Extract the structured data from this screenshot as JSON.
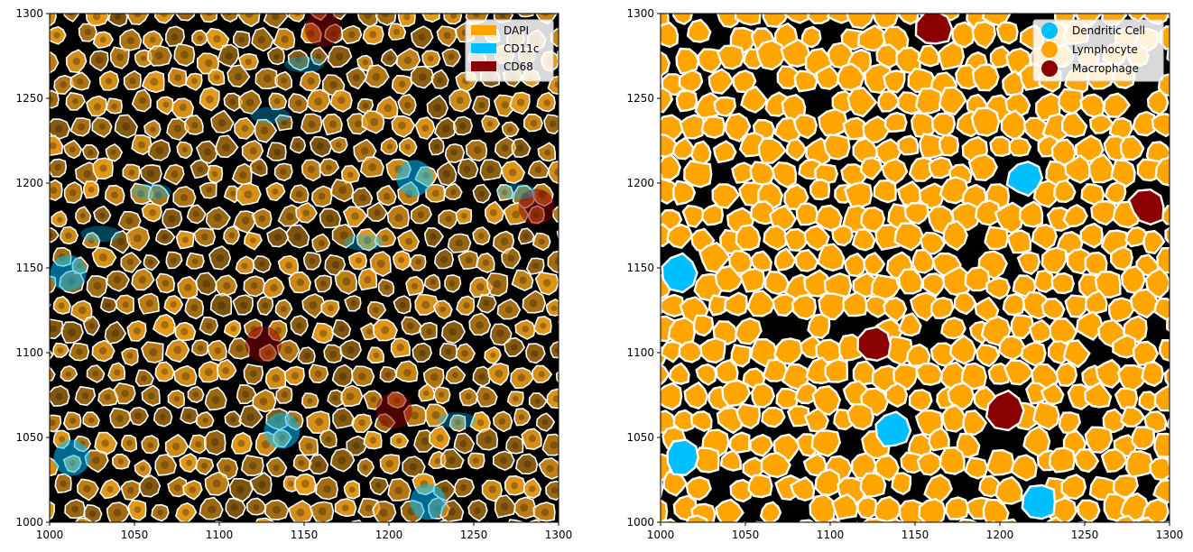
{
  "left_panel": {
    "xlim": [
      1000,
      1300
    ],
    "ylim": [
      1000,
      1300
    ],
    "x_ticks": [
      "1000",
      "1050",
      "1100",
      "1150",
      "1200",
      "1250",
      "1300"
    ],
    "y_ticks": [
      "1000",
      "1050",
      "1100",
      "1150",
      "1200",
      "1250",
      "1300"
    ],
    "legend": [
      {
        "label": "DAPI",
        "color": "#FFA500"
      },
      {
        "label": "CD11c",
        "color": "#00BFFF"
      },
      {
        "label": "CD68",
        "color": "#8B0000"
      }
    ],
    "background_color": "#000000",
    "cell_color": "#E69A1A",
    "boundary_color": "#FFFFFF"
  },
  "right_panel": {
    "xlim": [
      1000,
      1300
    ],
    "ylim": [
      1000,
      1300
    ],
    "x_ticks": [
      "1000",
      "1050",
      "1100",
      "1150",
      "1200",
      "1250",
      "1300"
    ],
    "y_ticks": [
      "1000",
      "1050",
      "1100",
      "1150",
      "1200",
      "1250",
      "1300"
    ],
    "legend": [
      {
        "label": "Dendritic Cell",
        "color": "#00BFFF"
      },
      {
        "label": "Lymphocyte",
        "color": "#FFA500"
      },
      {
        "label": "Macrophage",
        "color": "#8B0000"
      }
    ],
    "cells": [
      {
        "type": "Dendritic Cell",
        "x": 1215,
        "y": 1203
      },
      {
        "type": "Dendritic Cell",
        "x": 1011,
        "y": 1147
      },
      {
        "type": "Dendritic Cell",
        "x": 1137,
        "y": 1054
      },
      {
        "type": "Dendritic Cell",
        "x": 1013,
        "y": 1038
      },
      {
        "type": "Dendritic Cell",
        "x": 1223,
        "y": 1012
      },
      {
        "type": "Macrophage",
        "x": 1161,
        "y": 1291
      },
      {
        "type": "Macrophage",
        "x": 1287,
        "y": 1186
      },
      {
        "type": "Macrophage",
        "x": 1126,
        "y": 1105
      },
      {
        "type": "Macrophage",
        "x": 1203,
        "y": 1066
      }
    ]
  }
}
